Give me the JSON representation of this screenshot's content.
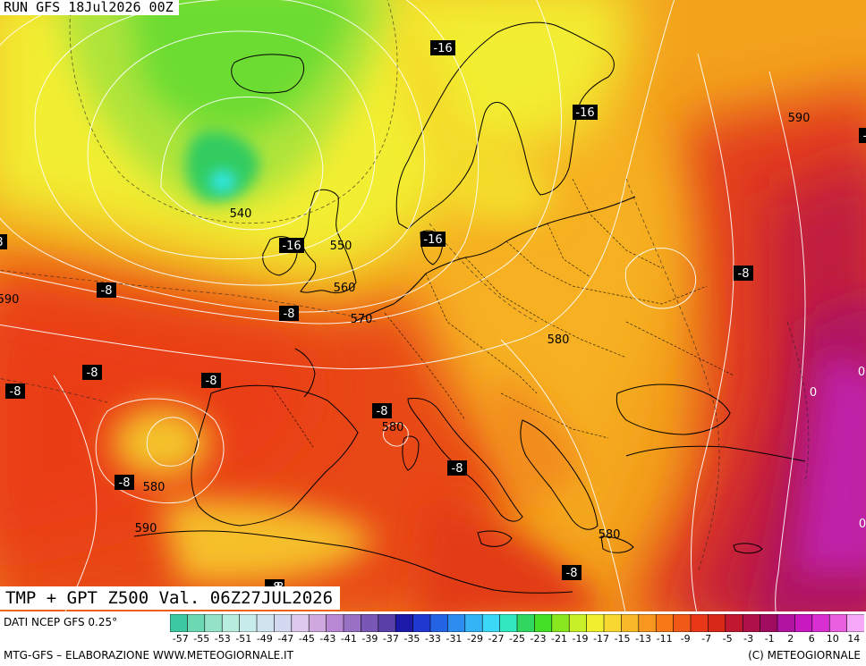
{
  "header": {
    "run_label": "RUN GFS 18Jul2026 00Z"
  },
  "title": {
    "valid_label": "TMP + GPT Z500 Val. 06Z27JUL2026"
  },
  "footer": {
    "source": "DATI NCEP GFS 0.25°",
    "credits": "MTG-GFS – ELABORAZIONE WWW.METEOGIORNALE.IT",
    "copyright": "(C) METEOGIORNALE"
  },
  "color_scale": {
    "tick_labels": [
      "-57",
      "-55",
      "-53",
      "-51",
      "-49",
      "-47",
      "-45",
      "-43",
      "-41",
      "-39",
      "-37",
      "-35",
      "-33",
      "-31",
      "-29",
      "-27",
      "-25",
      "-23",
      "-21",
      "-19",
      "-17",
      "-15",
      "-13",
      "-11",
      "-9",
      "-7",
      "-5",
      "-3",
      "-1",
      "2",
      "6",
      "10",
      "14"
    ],
    "colors": [
      "#3cc8a0",
      "#6cd8b4",
      "#94e2c8",
      "#b8ecdc",
      "#c8ecec",
      "#d0e4f0",
      "#d4d8f0",
      "#dcc8ec",
      "#d0a8e0",
      "#b888d4",
      "#9870c4",
      "#7858b4",
      "#5840a8",
      "#1c18a8",
      "#2038d0",
      "#2464e4",
      "#2c8cf0",
      "#34b4f4",
      "#3cd8f8",
      "#34e8c0",
      "#30d860",
      "#44e028",
      "#88e820",
      "#c8f028",
      "#f0f030",
      "#f8d830",
      "#f8b828",
      "#f89820",
      "#f87818",
      "#f05818",
      "#e83818",
      "#d82818",
      "#c01830",
      "#b01048",
      "#a00c60",
      "#b014a0",
      "#c818c0",
      "#d830d0",
      "#e860e0",
      "#f8a8f8"
    ]
  },
  "map": {
    "contour_labels": [
      {
        "text": "540"
      },
      {
        "text": "550"
      },
      {
        "text": "560"
      },
      {
        "text": "570"
      },
      {
        "text": "580"
      },
      {
        "text": "580"
      },
      {
        "text": "580"
      },
      {
        "text": "580"
      },
      {
        "text": "590"
      },
      {
        "text": "590"
      },
      {
        "text": "590"
      }
    ],
    "temp_labels": [
      {
        "text": "-16"
      },
      {
        "text": "-16"
      },
      {
        "text": "-16"
      },
      {
        "text": "-16"
      },
      {
        "text": "-8"
      },
      {
        "text": "-8"
      },
      {
        "text": "-8"
      },
      {
        "text": "-8"
      },
      {
        "text": "-8"
      },
      {
        "text": "-8"
      },
      {
        "text": "-8"
      },
      {
        "text": "-8"
      },
      {
        "text": "-8"
      },
      {
        "text": "-8"
      },
      {
        "text": "-8"
      },
      {
        "text": "-8"
      },
      {
        "text": "-8"
      },
      {
        "text": "0"
      },
      {
        "text": "0"
      },
      {
        "text": "0"
      },
      {
        "text": "8"
      }
    ]
  }
}
